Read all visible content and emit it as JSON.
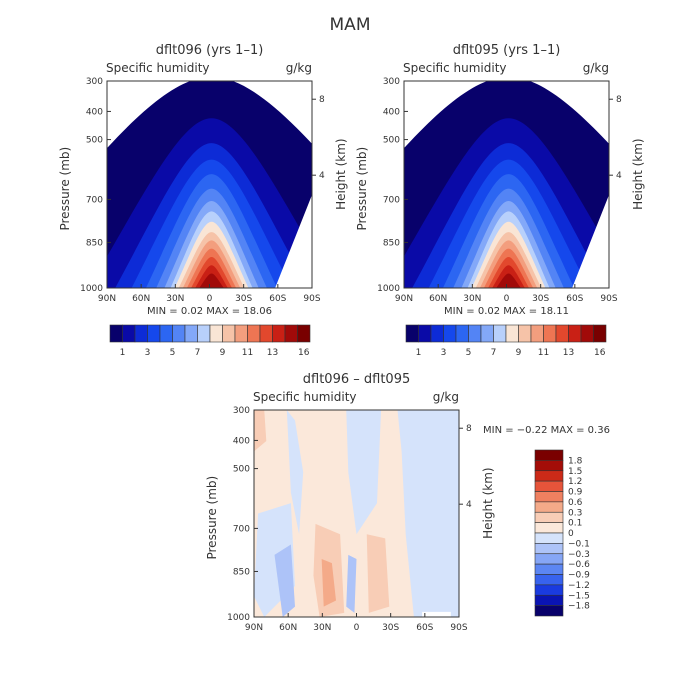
{
  "page_title": "MAM",
  "colors": {
    "positive_scale": [
      "#08016b",
      "#0a0aa7",
      "#0d2bd6",
      "#1548ec",
      "#2c66f2",
      "#5384f5",
      "#83a8f8",
      "#b8d0fb",
      "#f9e5d5",
      "#f6c3a8",
      "#f39e7e",
      "#ee7553",
      "#e2482d",
      "#c92015",
      "#a10a09",
      "#790000"
    ],
    "diff_scale": [
      "#08016b",
      "#0a14b3",
      "#1a3be0",
      "#3863ee",
      "#5c86f3",
      "#86a6f6",
      "#adc3f8",
      "#d5e3fb",
      "#fbe8da",
      "#f8cdb6",
      "#f4aa89",
      "#ef8060",
      "#e6543a",
      "#cc2a18",
      "#a40d08",
      "#7a0000"
    ]
  },
  "chart_data": [
    {
      "type": "heatmap",
      "title": "dflt096 (yrs 1–1)",
      "subtitle_left": "Specific humidity",
      "subtitle_right": "g/kg",
      "ylabel": "Pressure (mb)",
      "ylabel_right": "Height (km)",
      "x_ticks": [
        "90N",
        "60N",
        "30N",
        "0",
        "30S",
        "60S",
        "90S"
      ],
      "y_ticks": [
        "300",
        "400",
        "500",
        "700",
        "850",
        "1000"
      ],
      "y_ticks_right": [
        "8",
        "4"
      ],
      "ylim": [
        1000,
        300
      ],
      "stats": "MIN =    0.02   MAX =   18.06",
      "min": 0.02,
      "max": 18.06,
      "colorbar": {
        "orientation": "horizontal",
        "labels": [
          "1",
          "3",
          "5",
          "7",
          "9",
          "11",
          "13",
          "16"
        ]
      }
    },
    {
      "type": "heatmap",
      "title": "dflt095 (yrs 1–1)",
      "subtitle_left": "Specific humidity",
      "subtitle_right": "g/kg",
      "ylabel": "Pressure (mb)",
      "ylabel_right": "Height (km)",
      "x_ticks": [
        "90N",
        "60N",
        "30N",
        "0",
        "30S",
        "60S",
        "90S"
      ],
      "y_ticks": [
        "300",
        "400",
        "500",
        "700",
        "850",
        "1000"
      ],
      "y_ticks_right": [
        "8",
        "4"
      ],
      "ylim": [
        1000,
        300
      ],
      "stats": "MIN =    0.02   MAX =   18.11",
      "min": 0.02,
      "max": 18.11,
      "colorbar": {
        "orientation": "horizontal",
        "labels": [
          "1",
          "3",
          "5",
          "7",
          "9",
          "11",
          "13",
          "16"
        ]
      }
    },
    {
      "type": "heatmap",
      "title": "dflt096 – dflt095",
      "subtitle_left": "Specific humidity",
      "subtitle_right": "g/kg",
      "ylabel": "Pressure (mb)",
      "ylabel_right": "Height (km)",
      "x_ticks": [
        "90N",
        "60N",
        "30N",
        "0",
        "30S",
        "60S",
        "90S"
      ],
      "y_ticks": [
        "300",
        "400",
        "500",
        "700",
        "850",
        "1000"
      ],
      "y_ticks_right": [
        "8",
        "4"
      ],
      "ylim": [
        1000,
        300
      ],
      "stats": "MIN =    −0.22   MAX =    0.36",
      "min": -0.22,
      "max": 0.36,
      "colorbar": {
        "orientation": "vertical",
        "labels": [
          "1.8",
          "1.5",
          "1.2",
          "0.9",
          "0.6",
          "0.3",
          "0.1",
          "0",
          "−0.1",
          "−0.3",
          "−0.6",
          "−0.9",
          "−1.2",
          "−1.5",
          "−1.8"
        ]
      }
    }
  ]
}
